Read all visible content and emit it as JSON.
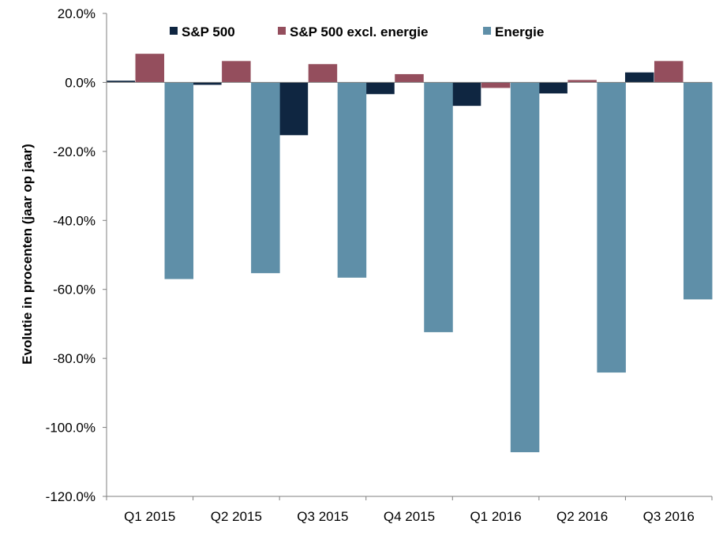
{
  "chart_data": {
    "type": "bar",
    "title": "",
    "xlabel": "",
    "ylabel": "Evolutie in procenten (jaar op jaar)",
    "ylim": [
      -120,
      20
    ],
    "ytick_step": 20,
    "ytick_labels": [
      "20.0%",
      "0.0%",
      "-20.0%",
      "-40.0%",
      "-60.0%",
      "-80.0%",
      "-100.0%",
      "-120.0%"
    ],
    "categories": [
      "Q1 2015",
      "Q2 2015",
      "Q3 2015",
      "Q4 2015",
      "Q1 2016",
      "Q2 2016",
      "Q3 2016"
    ],
    "series": [
      {
        "name": "S&P 500",
        "color": "#0f2641",
        "values": [
          0.5,
          -0.7,
          -15.3,
          -3.4,
          -6.8,
          -3.2,
          2.9
        ]
      },
      {
        "name": "S&P 500 excl. energie",
        "color": "#944e5d",
        "values": [
          8.3,
          6.2,
          5.3,
          2.4,
          -1.6,
          0.7,
          6.2
        ]
      },
      {
        "name": "Energie",
        "color": "#5f8fa8",
        "values": [
          -57.0,
          -55.3,
          -56.6,
          -72.4,
          -107.2,
          -84.1,
          -62.9
        ]
      }
    ],
    "legend_position": "top",
    "grid": false
  }
}
